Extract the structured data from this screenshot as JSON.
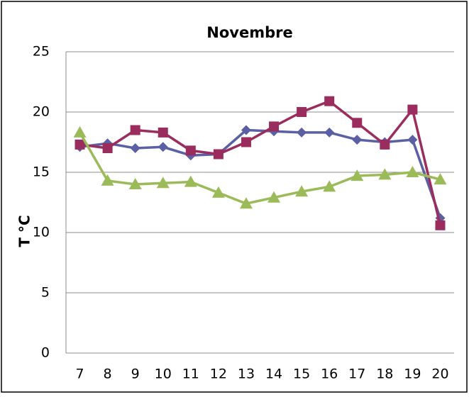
{
  "chart_data": {
    "type": "line",
    "title": "Novembre",
    "y_label": "T °C",
    "categories": [
      "7",
      "8",
      "9",
      "10",
      "11",
      "12",
      "13",
      "14",
      "15",
      "16",
      "17",
      "18",
      "19",
      "20"
    ],
    "series": [
      {
        "color": "#5b5fa3",
        "marker": "diamond",
        "values": [
          17.1,
          17.4,
          17.0,
          17.1,
          16.4,
          16.5,
          18.5,
          18.4,
          18.3,
          18.3,
          17.7,
          17.5,
          17.7,
          11.2
        ]
      },
      {
        "color": "#9b2d5e",
        "marker": "square",
        "values": [
          17.3,
          17.0,
          18.5,
          18.3,
          16.8,
          16.5,
          17.5,
          18.8,
          20.0,
          20.9,
          19.1,
          17.3,
          20.2,
          10.6
        ]
      },
      {
        "color": "#9bbb59",
        "marker": "triangle",
        "values": [
          18.3,
          14.3,
          14.0,
          14.1,
          14.2,
          13.3,
          12.4,
          12.9,
          13.4,
          13.8,
          14.7,
          14.8,
          15.0,
          14.4
        ]
      }
    ],
    "ylim": [
      0,
      25
    ],
    "yticks": [
      0,
      5,
      10,
      15,
      20,
      25
    ],
    "grid": true
  }
}
